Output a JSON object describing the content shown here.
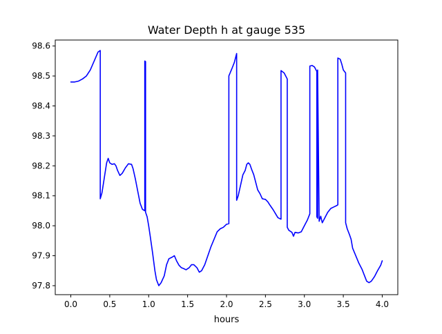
{
  "chart_data": {
    "type": "line",
    "title": "Water Depth h at gauge 535",
    "xlabel": "hours",
    "ylabel": "",
    "xlim": [
      -0.2,
      4.2
    ],
    "ylim": [
      97.77,
      98.62
    ],
    "xticks": [
      0.0,
      0.5,
      1.0,
      1.5,
      2.0,
      2.5,
      3.0,
      3.5,
      4.0
    ],
    "xtick_labels": [
      "0.0",
      "0.5",
      "1.0",
      "1.5",
      "2.0",
      "2.5",
      "3.0",
      "3.5",
      "4.0"
    ],
    "yticks": [
      97.8,
      97.9,
      98.0,
      98.1,
      98.2,
      98.3,
      98.4,
      98.5,
      98.6
    ],
    "ytick_labels": [
      "97.8",
      "97.9",
      "98.0",
      "98.1",
      "98.2",
      "98.3",
      "98.4",
      "98.5",
      "98.6"
    ],
    "grid": false,
    "legend": "none",
    "series": [
      {
        "color": "#0000ff",
        "x": [
          0.0,
          0.05,
          0.1,
          0.15,
          0.2,
          0.25,
          0.3,
          0.35,
          0.378,
          0.378,
          0.4,
          0.43,
          0.46,
          0.48,
          0.5,
          0.53,
          0.56,
          0.58,
          0.6,
          0.63,
          0.66,
          0.7,
          0.74,
          0.78,
          0.8,
          0.83,
          0.86,
          0.89,
          0.92,
          0.95,
          0.95,
          0.96,
          0.96,
          0.98,
          1.0,
          1.02,
          1.05,
          1.08,
          1.1,
          1.13,
          1.16,
          1.2,
          1.23,
          1.26,
          1.3,
          1.33,
          1.36,
          1.39,
          1.42,
          1.45,
          1.48,
          1.52,
          1.55,
          1.58,
          1.62,
          1.65,
          1.68,
          1.72,
          1.76,
          1.8,
          1.84,
          1.88,
          1.92,
          1.96,
          2.0,
          2.03,
          2.03,
          2.07,
          2.1,
          2.13,
          2.13,
          2.15,
          2.18,
          2.21,
          2.24,
          2.26,
          2.28,
          2.3,
          2.32,
          2.35,
          2.38,
          2.4,
          2.43,
          2.46,
          2.5,
          2.53,
          2.56,
          2.6,
          2.63,
          2.66,
          2.7,
          2.7,
          2.74,
          2.78,
          2.78,
          2.8,
          2.84,
          2.86,
          2.88,
          2.92,
          2.96,
          3.0,
          3.04,
          3.07,
          3.07,
          3.1,
          3.13,
          3.16,
          3.16,
          3.17,
          3.17,
          3.19,
          3.21,
          3.23,
          3.25,
          3.27,
          3.3,
          3.34,
          3.38,
          3.42,
          3.43,
          3.43,
          3.46,
          3.48,
          3.5,
          3.53,
          3.53,
          3.55,
          3.58,
          3.6,
          3.62,
          3.66,
          3.7,
          3.74,
          3.77,
          3.8,
          3.83,
          3.86,
          3.9,
          3.94,
          3.98,
          4.0
        ],
        "y": [
          98.48,
          98.48,
          98.483,
          98.49,
          98.5,
          98.52,
          98.55,
          98.58,
          98.585,
          98.09,
          98.11,
          98.16,
          98.21,
          98.225,
          98.21,
          98.205,
          98.207,
          98.2,
          98.185,
          98.168,
          98.175,
          98.193,
          98.207,
          98.205,
          98.19,
          98.155,
          98.115,
          98.075,
          98.055,
          98.05,
          98.55,
          98.548,
          98.045,
          98.03,
          98.0,
          97.965,
          97.91,
          97.85,
          97.82,
          97.8,
          97.81,
          97.833,
          97.87,
          97.89,
          97.895,
          97.9,
          97.882,
          97.868,
          97.86,
          97.857,
          97.853,
          97.86,
          97.87,
          97.87,
          97.86,
          97.845,
          97.85,
          97.87,
          97.9,
          97.93,
          97.955,
          97.98,
          97.99,
          97.995,
          98.005,
          98.007,
          98.5,
          98.525,
          98.545,
          98.575,
          98.085,
          98.1,
          98.135,
          98.17,
          98.185,
          98.205,
          98.21,
          98.205,
          98.19,
          98.17,
          98.14,
          98.12,
          98.107,
          98.09,
          98.088,
          98.08,
          98.068,
          98.053,
          98.04,
          98.027,
          98.022,
          98.518,
          98.51,
          98.49,
          97.995,
          97.985,
          97.978,
          97.965,
          97.978,
          97.976,
          97.98,
          98.0,
          98.02,
          98.04,
          98.533,
          98.535,
          98.53,
          98.515,
          98.03,
          98.025,
          98.52,
          98.015,
          98.032,
          98.01,
          98.02,
          98.03,
          98.045,
          98.058,
          98.063,
          98.068,
          98.07,
          98.56,
          98.556,
          98.54,
          98.52,
          98.51,
          98.01,
          97.99,
          97.97,
          97.955,
          97.925,
          97.9,
          97.875,
          97.855,
          97.835,
          97.815,
          97.81,
          97.815,
          97.83,
          97.85,
          97.868,
          97.883
        ]
      }
    ]
  }
}
